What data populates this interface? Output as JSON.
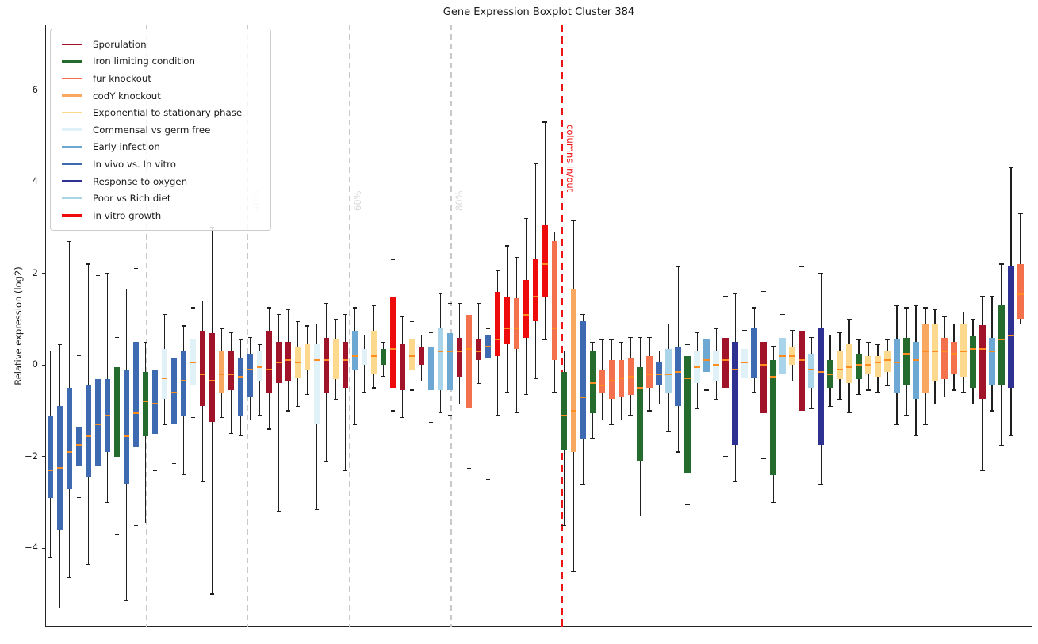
{
  "title": "Gene Expression Boxplot Cluster 384",
  "y_axis": {
    "label": "Relative expression (log2)",
    "ticks": [
      6,
      4,
      2,
      0,
      -2,
      -4
    ],
    "lim": [
      -5.71,
      7.43
    ]
  },
  "colors": {
    "median_line": "#FF8C1E",
    "whisker": "#1f1f1f",
    "frame": "#262626",
    "percent_line": "#c9c9c9",
    "percent_label": "#d8d8d8",
    "inout_line": "#ed1515",
    "inout_label": "#ee1111",
    "background": "#ffffff"
  },
  "legend": {
    "items": [
      {
        "label": "Sporulation",
        "color": "#A01329"
      },
      {
        "label": "Iron limiting condition",
        "color": "#246B2D"
      },
      {
        "label": "fur knockout",
        "color": "#F4714D"
      },
      {
        "label": "codY knockout",
        "color": "#F9A862"
      },
      {
        "label": "Exponential to stationary phase",
        "color": "#FCD98D"
      },
      {
        "label": "Commensal vs germ free",
        "color": "#E1F1F8"
      },
      {
        "label": "Early infection",
        "color": "#6DA7D3"
      },
      {
        "label": "In vivo vs. In vitro",
        "color": "#3E6AB1"
      },
      {
        "label": "Response to oxygen",
        "color": "#2E3192"
      },
      {
        "label": "Poor vs Rich diet",
        "color": "#A9D4E9"
      },
      {
        "label": "In vitro growth",
        "color": "#EE0B0B"
      }
    ]
  },
  "markers": [
    {
      "label": "20%",
      "x": 184.5,
      "style": "percent"
    },
    {
      "label": "40%",
      "x": 312.5,
      "style": "percent"
    },
    {
      "label": "60%",
      "x": 440.5,
      "style": "percent"
    },
    {
      "label": "80%",
      "x": 569.0,
      "style": "percent"
    },
    {
      "label": "columns in/out",
      "x": 708.5,
      "style": "inout"
    }
  ],
  "chart_data": {
    "type": "boxplot",
    "title": "Gene Expression Boxplot Cluster 384",
    "ylabel": "Relative expression (log2)",
    "ylim": [
      -5.71,
      7.43
    ],
    "grid": false,
    "legend_position": "upper-left",
    "n_boxes": 103,
    "box_value_order": [
      "category_index",
      "whisker_low",
      "q1",
      "median",
      "q3",
      "whisker_high"
    ],
    "categories": [
      "Sporulation",
      "Iron limiting condition",
      "fur knockout",
      "codY knockout",
      "Exponential to stationary phase",
      "Commensal vs germ free",
      "Early infection",
      "In vivo vs. In vitro",
      "Response to oxygen",
      "Poor vs Rich diet",
      "In vitro growth"
    ],
    "boxes": [
      [
        7,
        -4.2,
        -2.9,
        -2.3,
        -1.1,
        0.3
      ],
      [
        7,
        -5.3,
        -3.6,
        -2.25,
        -0.9,
        0.45
      ],
      [
        7,
        -4.65,
        -2.7,
        -1.9,
        -0.5,
        2.7
      ],
      [
        7,
        -2.9,
        -2.2,
        -1.75,
        -1.35,
        0.2
      ],
      [
        7,
        -4.35,
        -2.45,
        -1.55,
        -0.45,
        2.2
      ],
      [
        7,
        -4.45,
        -2.2,
        -1.3,
        -0.3,
        1.95
      ],
      [
        7,
        -3.0,
        -1.9,
        -1.1,
        -0.3,
        2.0
      ],
      [
        1,
        -3.7,
        -2.0,
        -1.2,
        -0.05,
        0.6
      ],
      [
        7,
        -5.15,
        -2.6,
        -1.55,
        -0.1,
        1.65
      ],
      [
        7,
        -3.5,
        -1.8,
        -1.05,
        0.5,
        2.1
      ],
      [
        1,
        -3.45,
        -1.55,
        -0.8,
        -0.15,
        0.5
      ],
      [
        7,
        -2.3,
        -1.5,
        -0.85,
        -0.1,
        0.9
      ],
      [
        5,
        -1.3,
        -0.75,
        -0.3,
        0.35,
        1.1
      ],
      [
        7,
        -2.15,
        -1.3,
        -0.6,
        0.15,
        1.4
      ],
      [
        7,
        -2.4,
        -1.1,
        -0.35,
        0.3,
        0.85
      ],
      [
        5,
        -1.15,
        -0.45,
        0.05,
        0.55,
        1.25
      ],
      [
        0,
        -2.55,
        -0.9,
        -0.2,
        0.75,
        1.4
      ],
      [
        0,
        -5.0,
        -1.25,
        -0.35,
        0.7,
        3.0
      ],
      [
        3,
        -1.15,
        -0.6,
        -0.2,
        0.3,
        0.8
      ],
      [
        0,
        -1.5,
        -0.55,
        -0.2,
        0.3,
        0.7
      ],
      [
        7,
        -1.55,
        -1.1,
        -0.25,
        0.15,
        0.55
      ],
      [
        7,
        -1.2,
        -0.7,
        -0.1,
        0.25,
        0.6
      ],
      [
        5,
        -1.1,
        -0.35,
        -0.05,
        0.3,
        0.45
      ],
      [
        0,
        -1.4,
        -0.6,
        -0.1,
        0.75,
        1.25
      ],
      [
        0,
        -3.2,
        -0.4,
        0.05,
        0.5,
        1.1
      ],
      [
        0,
        -1.0,
        -0.35,
        0.1,
        0.5,
        1.2
      ],
      [
        4,
        -0.9,
        -0.3,
        0.05,
        0.4,
        0.95
      ],
      [
        4,
        -0.65,
        -0.1,
        0.15,
        0.45,
        0.85
      ],
      [
        5,
        -3.15,
        -1.3,
        0.1,
        0.45,
        0.9
      ],
      [
        0,
        -2.1,
        -0.6,
        0.1,
        0.6,
        1.35
      ],
      [
        4,
        -0.75,
        -0.3,
        0.15,
        0.55,
        1.0
      ],
      [
        0,
        -2.3,
        -0.5,
        0.1,
        0.5,
        1.1
      ],
      [
        6,
        -1.3,
        -0.1,
        0.2,
        0.75,
        1.25
      ],
      [
        5,
        -0.6,
        0.0,
        0.15,
        0.35,
        0.65
      ],
      [
        4,
        -0.5,
        -0.2,
        0.2,
        0.75,
        1.3
      ],
      [
        1,
        -0.25,
        0.0,
        0.15,
        0.35,
        0.5
      ],
      [
        10,
        -1.0,
        -0.5,
        0.35,
        1.5,
        2.3
      ],
      [
        0,
        -1.15,
        -0.55,
        0.15,
        0.45,
        1.05
      ],
      [
        4,
        -0.55,
        -0.1,
        0.2,
        0.55,
        0.95
      ],
      [
        0,
        -0.35,
        0.0,
        0.15,
        0.4,
        0.65
      ],
      [
        6,
        -1.25,
        -0.55,
        0.15,
        0.4,
        0.7
      ],
      [
        9,
        -1.05,
        -0.55,
        0.3,
        0.8,
        1.55
      ],
      [
        6,
        -1.1,
        -0.55,
        0.3,
        0.7,
        1.35
      ],
      [
        0,
        -0.85,
        -0.25,
        0.3,
        0.6,
        1.35
      ],
      [
        2,
        -2.25,
        -0.95,
        0.35,
        1.1,
        1.4
      ],
      [
        0,
        -0.4,
        0.1,
        0.3,
        0.55,
        1.35
      ],
      [
        7,
        -2.5,
        0.15,
        0.4,
        0.65,
        0.8
      ],
      [
        10,
        -1.1,
        0.2,
        0.55,
        1.6,
        2.05
      ],
      [
        10,
        -0.6,
        0.45,
        0.8,
        1.5,
        2.6
      ],
      [
        2,
        -1.05,
        0.35,
        0.8,
        1.45,
        2.35
      ],
      [
        10,
        -0.65,
        0.6,
        1.1,
        1.85,
        3.2
      ],
      [
        10,
        -0.3,
        0.95,
        1.5,
        2.3,
        4.4
      ],
      [
        10,
        0.55,
        1.5,
        2.2,
        3.05,
        5.3
      ],
      [
        2,
        -0.6,
        0.1,
        0.8,
        2.7,
        2.9
      ],
      [
        1,
        -3.5,
        -1.85,
        -1.1,
        -0.15,
        0.3
      ],
      [
        3,
        -4.5,
        -1.9,
        -1.0,
        1.65,
        3.15
      ],
      [
        7,
        -2.6,
        -1.6,
        -0.7,
        0.95,
        1.1
      ],
      [
        1,
        -1.6,
        -1.05,
        -0.4,
        0.3,
        0.5
      ],
      [
        2,
        -1.2,
        -0.6,
        -0.45,
        -0.1,
        0.55
      ],
      [
        2,
        -1.3,
        -0.75,
        -0.35,
        0.1,
        0.55
      ],
      [
        2,
        -1.2,
        -0.7,
        -0.3,
        0.1,
        0.5
      ],
      [
        2,
        -1.1,
        -0.65,
        -0.25,
        0.15,
        0.6
      ],
      [
        1,
        -3.3,
        -2.1,
        -0.5,
        -0.05,
        0.6
      ],
      [
        2,
        -1.0,
        -0.5,
        -0.2,
        0.2,
        0.6
      ],
      [
        7,
        -0.85,
        -0.45,
        -0.2,
        0.05,
        0.3
      ],
      [
        9,
        -1.45,
        -0.6,
        -0.2,
        0.35,
        0.9
      ],
      [
        7,
        -1.9,
        -0.9,
        -0.15,
        0.4,
        2.15
      ],
      [
        1,
        -3.05,
        -2.35,
        -0.3,
        0.2,
        0.45
      ],
      [
        5,
        -0.95,
        -0.4,
        -0.05,
        0.3,
        0.7
      ],
      [
        6,
        -0.55,
        -0.15,
        0.1,
        0.55,
        1.9
      ],
      [
        5,
        -0.75,
        -0.35,
        0.0,
        0.3,
        0.8
      ],
      [
        0,
        -2.0,
        -0.5,
        0.1,
        0.6,
        1.5
      ],
      [
        8,
        -2.55,
        -1.75,
        -0.1,
        0.5,
        1.55
      ],
      [
        5,
        -0.7,
        -0.3,
        0.05,
        0.35,
        0.75
      ],
      [
        7,
        -0.6,
        -0.3,
        0.15,
        0.8,
        1.25
      ],
      [
        0,
        -2.05,
        -1.05,
        0.0,
        0.5,
        1.6
      ],
      [
        1,
        -3.0,
        -2.4,
        -0.25,
        0.1,
        0.4
      ],
      [
        9,
        -0.85,
        -0.2,
        0.2,
        0.6,
        1.1
      ],
      [
        4,
        -0.35,
        0.0,
        0.2,
        0.4,
        0.75
      ],
      [
        0,
        -1.7,
        -1.0,
        0.1,
        0.75,
        2.15
      ],
      [
        9,
        -0.95,
        -0.5,
        -0.1,
        0.25,
        0.6
      ],
      [
        8,
        -2.6,
        -1.75,
        -0.15,
        0.8,
        2.0
      ],
      [
        1,
        -0.9,
        -0.5,
        -0.2,
        0.1,
        0.65
      ],
      [
        4,
        -0.75,
        -0.3,
        -0.1,
        0.3,
        0.7
      ],
      [
        4,
        -1.05,
        -0.4,
        -0.05,
        0.45,
        1.0
      ],
      [
        1,
        -0.65,
        -0.3,
        0.0,
        0.25,
        0.55
      ],
      [
        4,
        -0.55,
        -0.2,
        0.0,
        0.2,
        0.5
      ],
      [
        4,
        -0.6,
        -0.25,
        0.05,
        0.2,
        0.45
      ],
      [
        4,
        -0.45,
        -0.15,
        0.1,
        0.3,
        0.55
      ],
      [
        6,
        -1.3,
        -0.6,
        0.05,
        0.55,
        1.3
      ],
      [
        1,
        -1.1,
        -0.45,
        0.25,
        0.6,
        1.25
      ],
      [
        6,
        -1.55,
        -0.75,
        0.1,
        0.5,
        1.3
      ],
      [
        3,
        -1.3,
        -0.6,
        0.3,
        0.9,
        1.25
      ],
      [
        4,
        -0.85,
        -0.35,
        0.3,
        0.9,
        1.2
      ],
      [
        2,
        -0.7,
        -0.3,
        0.3,
        0.6,
        1.05
      ],
      [
        2,
        -0.55,
        -0.2,
        0.25,
        0.5,
        0.9
      ],
      [
        4,
        -0.6,
        -0.25,
        0.3,
        0.9,
        1.15
      ],
      [
        1,
        -0.85,
        -0.5,
        0.35,
        0.62,
        1.0
      ],
      [
        0,
        -2.3,
        -0.75,
        0.35,
        0.87,
        1.5
      ],
      [
        6,
        -1.0,
        -0.45,
        0.3,
        0.6,
        1.5
      ],
      [
        1,
        -1.75,
        -0.45,
        0.55,
        1.3,
        2.2
      ],
      [
        8,
        -1.55,
        -0.5,
        0.65,
        2.15,
        4.3
      ],
      [
        2,
        0.9,
        1.0,
        1.55,
        2.2,
        3.3
      ]
    ]
  }
}
